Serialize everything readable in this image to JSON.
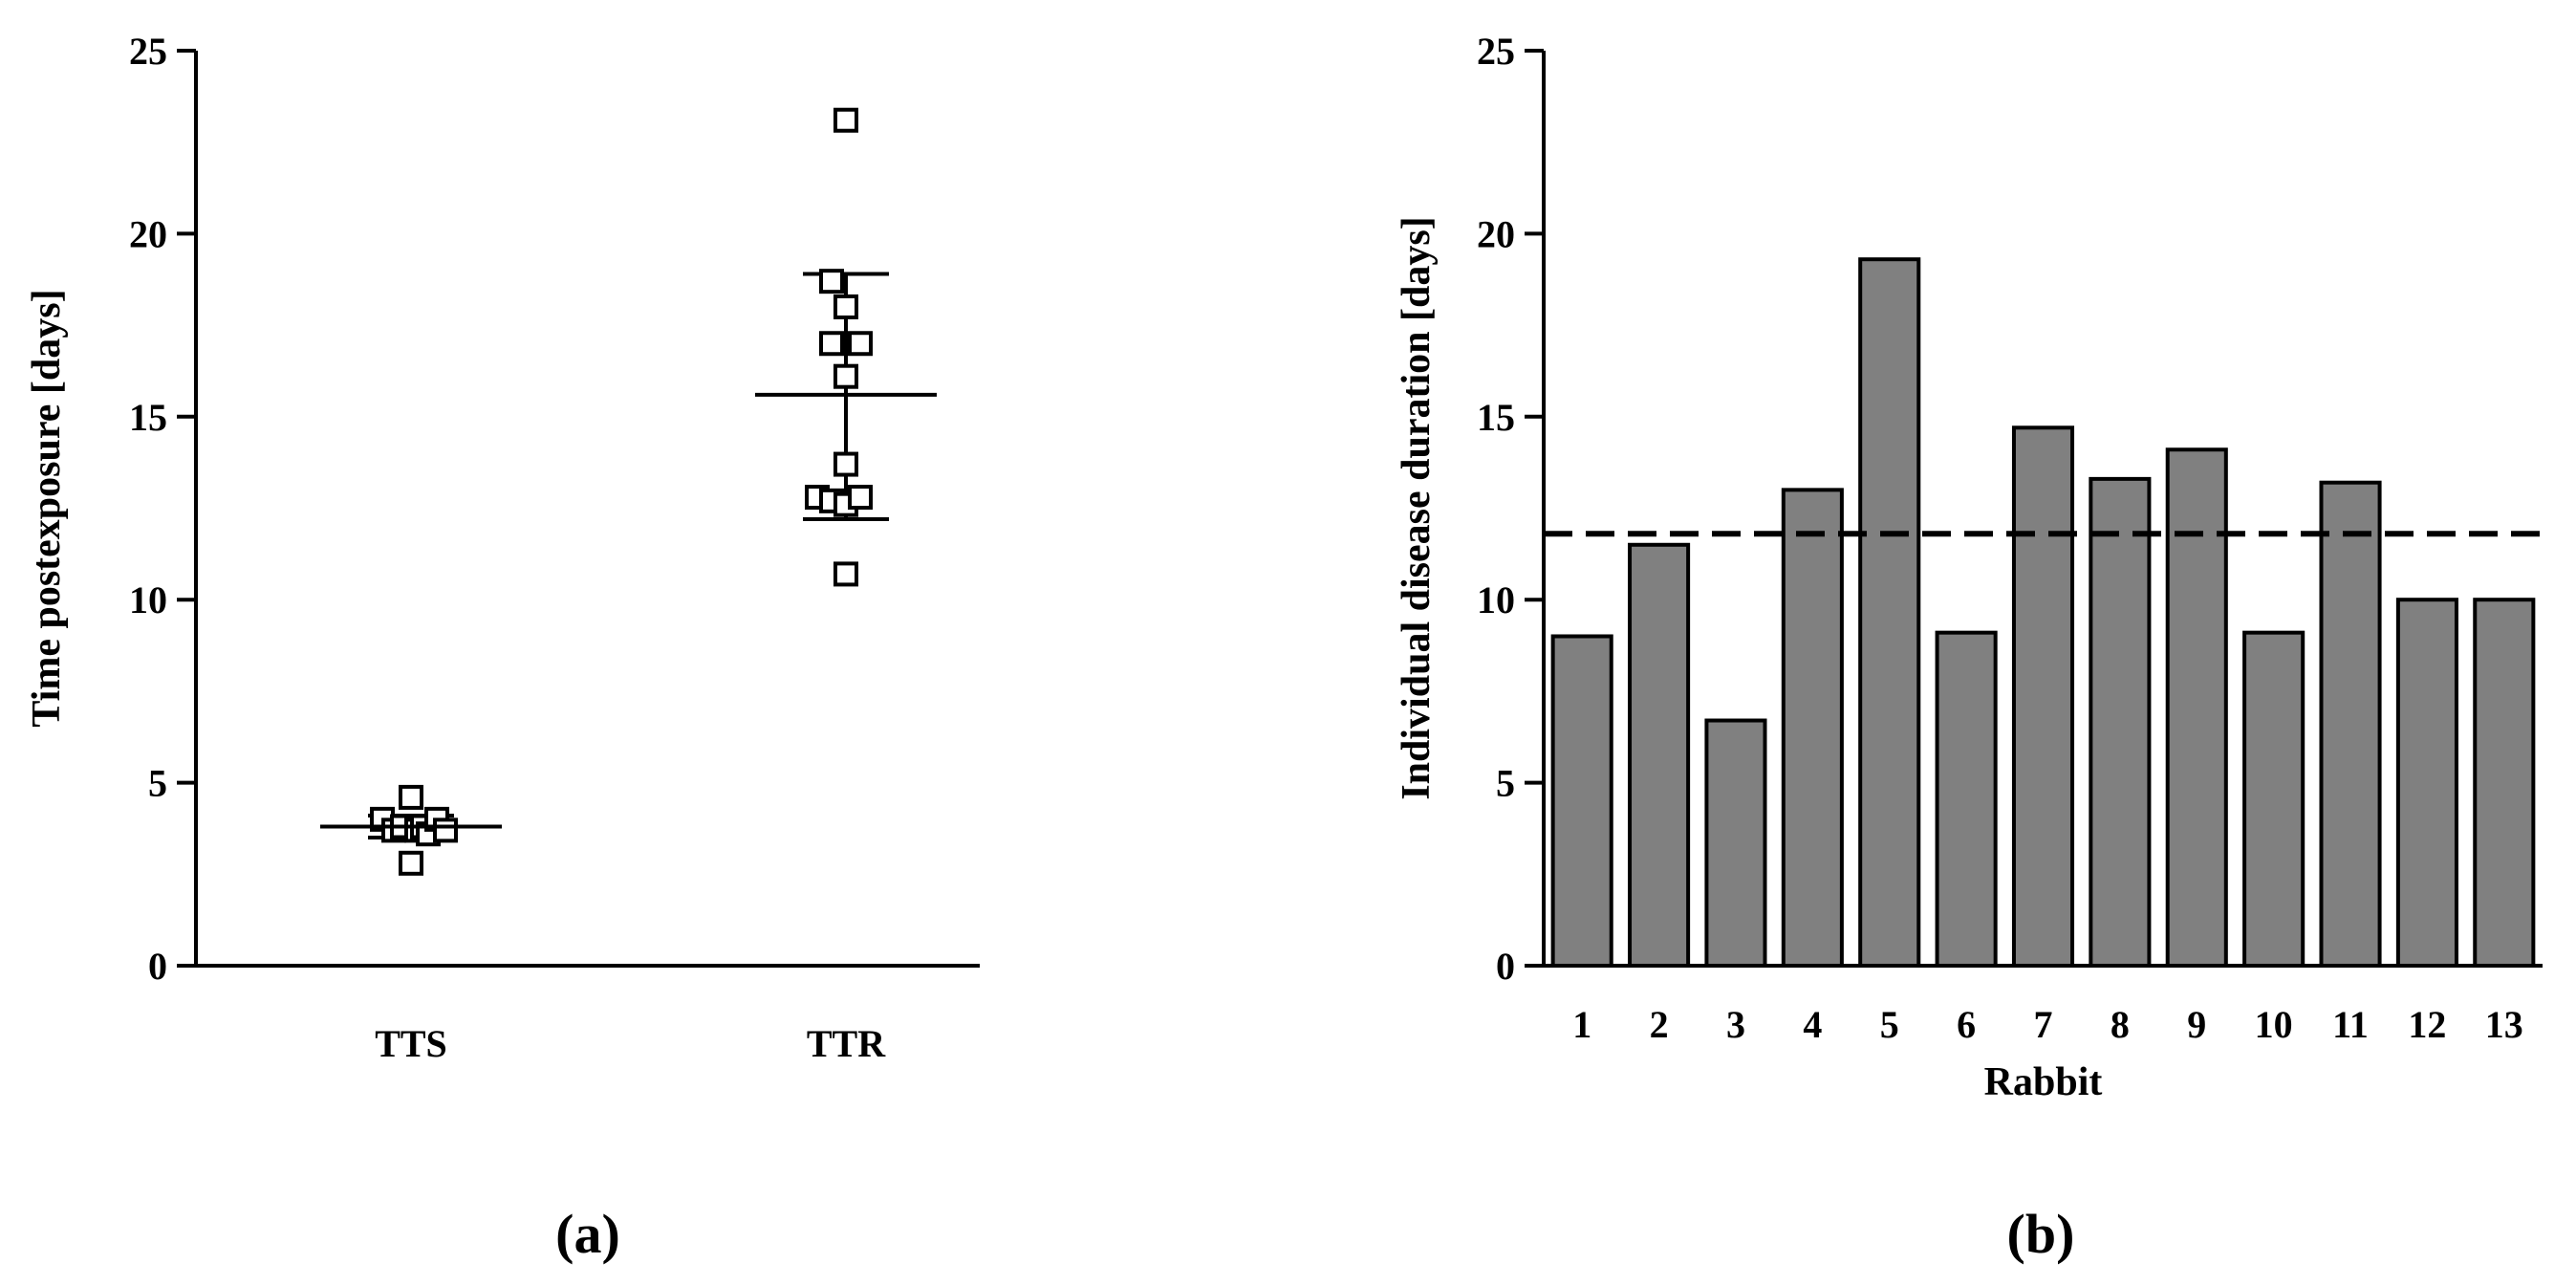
{
  "chart_data": [
    {
      "type": "scatter",
      "panel_label": "(a)",
      "ylabel": "Time postexposure [days]",
      "xlabel": "",
      "ylim": [
        0,
        25
      ],
      "yticks": [
        "0",
        "5",
        "10",
        "15",
        "20",
        "25"
      ],
      "categories": [
        "TTS",
        "TTR"
      ],
      "groups": [
        {
          "name": "TTS",
          "points": [
            {
              "offset": -0.5,
              "y": 4.0
            },
            {
              "offset": -0.3,
              "y": 3.7
            },
            {
              "offset": -0.15,
              "y": 3.8
            },
            {
              "offset": 0.0,
              "y": 4.6
            },
            {
              "offset": 0.0,
              "y": 2.8
            },
            {
              "offset": 0.1,
              "y": 3.7
            },
            {
              "offset": 0.2,
              "y": 3.8
            },
            {
              "offset": 0.3,
              "y": 3.6
            },
            {
              "offset": 0.45,
              "y": 4.0
            },
            {
              "offset": 0.6,
              "y": 3.7
            }
          ],
          "mean": 3.8,
          "sd_low": 3.5,
          "sd_high": 4.1
        },
        {
          "name": "TTR",
          "points": [
            {
              "offset": 0.0,
              "y": 23.1
            },
            {
              "offset": -0.25,
              "y": 18.7
            },
            {
              "offset": 0.0,
              "y": 18.0
            },
            {
              "offset": -0.25,
              "y": 17.0
            },
            {
              "offset": 0.25,
              "y": 17.0
            },
            {
              "offset": 0.0,
              "y": 16.1
            },
            {
              "offset": 0.0,
              "y": 13.7
            },
            {
              "offset": -0.5,
              "y": 12.8
            },
            {
              "offset": -0.25,
              "y": 12.7
            },
            {
              "offset": 0.0,
              "y": 12.6
            },
            {
              "offset": 0.25,
              "y": 12.8
            },
            {
              "offset": 0.0,
              "y": 10.7
            }
          ],
          "mean": 15.6,
          "sd_low": 12.2,
          "sd_high": 18.9
        }
      ]
    },
    {
      "type": "bar",
      "panel_label": "(b)",
      "xlabel": "Rabbit",
      "ylabel": "Individual disease duration [days]",
      "ylim": [
        0,
        25
      ],
      "yticks": [
        "0",
        "5",
        "10",
        "15",
        "20",
        "25"
      ],
      "categories": [
        "1",
        "2",
        "3",
        "4",
        "5",
        "6",
        "7",
        "8",
        "9",
        "10",
        "11",
        "12",
        "13"
      ],
      "values": [
        9.0,
        11.5,
        6.7,
        13.0,
        19.3,
        9.1,
        14.7,
        13.3,
        14.1,
        9.1,
        13.2,
        10.0,
        10.0
      ],
      "reference_line": 11.8,
      "bar_color": "#808080"
    }
  ]
}
